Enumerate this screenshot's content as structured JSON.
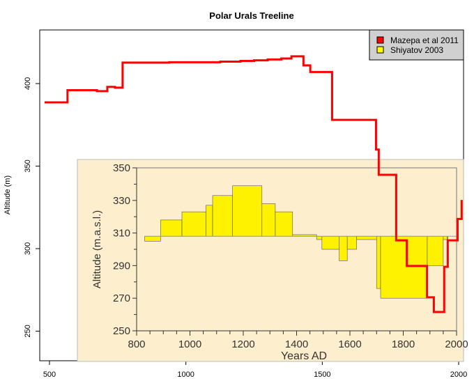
{
  "chart_data": [
    {
      "type": "line",
      "title": "Polar Urals Treeline",
      "xlabel": "",
      "ylabel": "Altitude (m)",
      "xlim": [
        464,
        2020
      ],
      "ylim": [
        232,
        432
      ],
      "xticks": [
        500,
        1000,
        1500,
        2000
      ],
      "yticks": [
        250,
        300,
        350,
        400
      ],
      "legend": {
        "placement": "top-right",
        "entries": [
          {
            "label": "Mazepa et al 2011",
            "color": "#ff0000"
          },
          {
            "label": "Shiyatov 2003",
            "color": "#ffff00"
          }
        ]
      },
      "series": [
        {
          "name": "Mazepa et al 2011",
          "color": "#ff0000",
          "step": true,
          "x": [
            482,
            566,
            674,
            712,
            740,
            768,
            939,
            1126,
            1200,
            1250,
            1300,
            1350,
            1387,
            1431,
            1456,
            1536,
            1697,
            1707,
            1771,
            1810,
            1884,
            1909,
            1947,
            1960,
            1996,
            2011
          ],
          "y": [
            388.6,
            396,
            395.4,
            398,
            397.5,
            412.7,
            412.9,
            413.3,
            413.7,
            414.1,
            414.6,
            415.2,
            416.5,
            411,
            407,
            378,
            360,
            344.7,
            305,
            289.5,
            270.5,
            261.6,
            289,
            305,
            318,
            329.5
          ]
        }
      ]
    },
    {
      "type": "area",
      "title": "",
      "xlabel": "Years AD",
      "ylabel": "Altitude (m.a.s.l.)",
      "xlim": [
        800,
        2000
      ],
      "ylim": [
        250,
        350
      ],
      "baseline": 308,
      "xticks": [
        800,
        1000,
        1200,
        1400,
        1600,
        1800,
        2000
      ],
      "yticks": [
        250,
        270,
        290,
        310,
        330,
        350
      ],
      "series": [
        {
          "name": "Shiyatov 2003",
          "color": "#fff200",
          "step": true,
          "x": [
            830,
            890,
            970,
            1060,
            1085,
            1160,
            1270,
            1320,
            1385,
            1475,
            1495,
            1560,
            1590,
            1625,
            1700,
            1715,
            1890,
            1950,
            1965
          ],
          "y": [
            305,
            318,
            323,
            327,
            333,
            339,
            328,
            323,
            309,
            306,
            300,
            293,
            300,
            306,
            276,
            270,
            290,
            306,
            306
          ]
        }
      ]
    }
  ]
}
